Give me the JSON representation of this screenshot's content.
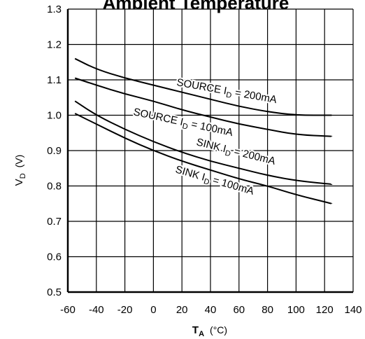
{
  "chart_data": {
    "type": "line",
    "title": "Ambient Temperature",
    "xlabel": {
      "main": "T",
      "sub": "A",
      "unit": "(°C)"
    },
    "ylabel": {
      "main": "V",
      "sub": "D",
      "unit": "(V)"
    },
    "xlim": [
      -60,
      140
    ],
    "ylim": [
      0.5,
      1.3
    ],
    "xticks": [
      "-60",
      "-40",
      "-20",
      "0",
      "20",
      "40",
      "60",
      "80",
      "100",
      "120",
      "140"
    ],
    "yticks": [
      "0.5",
      "0.6",
      "0.7",
      "0.8",
      "0.9",
      "1.0",
      "1.1",
      "1.2",
      "1.3"
    ],
    "grid": true,
    "series": [
      {
        "name": "SOURCE I_D = 200mA",
        "label": {
          "pre": "SOURCE I",
          "sub": "D",
          "post": " = 200mA"
        },
        "x": [
          -55,
          -40,
          -20,
          0,
          20,
          40,
          60,
          80,
          100,
          125
        ],
        "y": [
          1.16,
          1.13,
          1.105,
          1.085,
          1.065,
          1.045,
          1.025,
          1.01,
          1.0,
          1.0
        ]
      },
      {
        "name": "SOURCE I_D = 100mA",
        "label": {
          "pre": "SOURCE I",
          "sub": "D",
          "post": " = 100mA"
        },
        "x": [
          -55,
          -40,
          -20,
          0,
          20,
          40,
          60,
          80,
          100,
          125
        ],
        "y": [
          1.105,
          1.085,
          1.06,
          1.04,
          1.015,
          0.995,
          0.975,
          0.96,
          0.945,
          0.94
        ]
      },
      {
        "name": "SINK I_D = 200mA",
        "label": {
          "pre": "SINK I",
          "sub": "D",
          "post": "  = 200mA"
        },
        "x": [
          -55,
          -40,
          -20,
          0,
          20,
          40,
          60,
          80,
          100,
          125
        ],
        "y": [
          1.04,
          1.0,
          0.96,
          0.925,
          0.895,
          0.87,
          0.85,
          0.83,
          0.815,
          0.805
        ]
      },
      {
        "name": "SINK I_D = 100mA",
        "label": {
          "pre": "SINK I",
          "sub": "D",
          "post": " = 100mA"
        },
        "x": [
          -55,
          -40,
          -20,
          0,
          20,
          40,
          60,
          80,
          100,
          125
        ],
        "y": [
          1.005,
          0.975,
          0.935,
          0.9,
          0.87,
          0.845,
          0.82,
          0.8,
          0.775,
          0.75
        ]
      }
    ]
  }
}
